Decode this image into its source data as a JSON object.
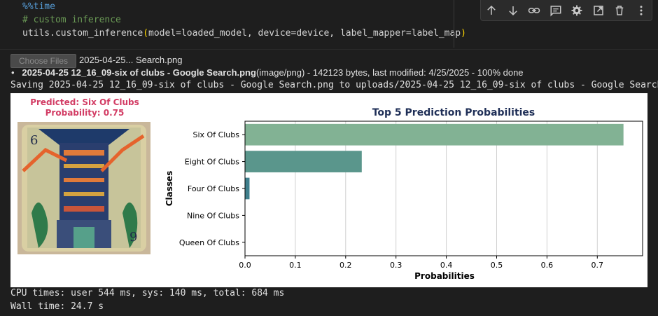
{
  "code": {
    "line1": "%%time",
    "line2": "# custom inference",
    "line3_func": "utils.custom_inference",
    "line3_open": "(",
    "line3_args": "model=loaded_model, device=device, label_mapper=label_map",
    "line3_close": ")"
  },
  "toolbar": {
    "icons": [
      "arrow-up-icon",
      "arrow-down-icon",
      "link-icon",
      "comment-icon",
      "gear-icon",
      "expand-icon",
      "trash-icon",
      "more-icon"
    ]
  },
  "upload": {
    "choose_label": "Choose Files",
    "file_name": "2025-04-25... Search.png",
    "bullet": "•",
    "file_bold": "2025-04-25 12_16_09-six of clubs - Google Search.png",
    "file_meta": "(image/png) - 142123 bytes, last modified: 4/25/2025 - 100% done",
    "saving": "Saving 2025-04-25 12_16_09-six of clubs - Google Search.png to uploads/2025-04-25 12_16_09-six of clubs - Google Search.",
    "saving_tail": "p"
  },
  "prediction": {
    "line1": "Predicted: Six Of Clubs",
    "line2": "Probability: 0.75"
  },
  "chart_data": {
    "type": "bar",
    "orientation": "horizontal",
    "title": "Top 5 Prediction Probabilities",
    "xlabel": "Probabilities",
    "ylabel": "Classes",
    "categories": [
      "Six Of Clubs",
      "Eight Of Clubs",
      "Four Of Clubs",
      "Nine Of Clubs",
      "Queen Of Clubs"
    ],
    "values": [
      0.752,
      0.232,
      0.009,
      0.0003,
      0.0002
    ],
    "colors": [
      "#82b294",
      "#5a968c",
      "#3f7f8c",
      "#39688c",
      "#3d4f82"
    ],
    "xlim": [
      0,
      0.79
    ],
    "xticks": [
      "0.0",
      "0.1",
      "0.2",
      "0.3",
      "0.4",
      "0.5",
      "0.6",
      "0.7"
    ],
    "grid": "vertical"
  },
  "timing": {
    "cpu": "CPU times: user 544 ms, sys: 140 ms, total: 684 ms",
    "wall": "Wall time: 24.7 s"
  }
}
